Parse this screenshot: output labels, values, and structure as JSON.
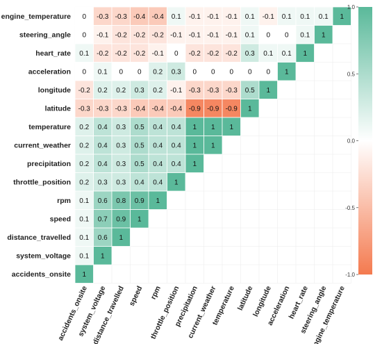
{
  "chart_data": {
    "type": "heatmap",
    "title": "",
    "row_order": [
      "engine_temperature",
      "steering_angle",
      "heart_rate",
      "acceleration",
      "longitude",
      "latitude",
      "temperature",
      "current_weather",
      "precipitation",
      "throttle_position",
      "rpm",
      "speed",
      "distance_travelled",
      "system_voltage",
      "accidents_onsite"
    ],
    "column_order": [
      "accidents_onsite",
      "system_voltage",
      "distance_travelled",
      "speed",
      "rpm",
      "throttle_position",
      "precipitation",
      "current_weather",
      "temperature",
      "latitude",
      "longitude",
      "acceleration",
      "heart_rate",
      "steering_angle",
      "engine_temperature"
    ],
    "row_labels": [
      "engine_temperature",
      "steering_angle",
      "heart_rate",
      "acceleration",
      "longitude",
      "latitude",
      "temperature",
      "current_weather",
      "precipitation",
      "throttle_position",
      "rpm",
      "speed",
      "distance_travelled",
      "system_voltage",
      "accidents_onsite"
    ],
    "column_labels": [
      "accidents_onsite",
      "system_voltage",
      "distance_travelled",
      "speed",
      "rpm",
      "throttle_position",
      "precipitation",
      "current_weather",
      "temperature",
      "latitude",
      "longitude",
      "acceleration",
      "heart_rate",
      "steering_angle",
      "engine_temperature"
    ],
    "matrix": [
      [
        0,
        -0.3,
        -0.3,
        -0.4,
        -0.4,
        0.1,
        -0.1,
        -0.1,
        -0.1,
        0.1,
        -0.1,
        0.1,
        0.1,
        0.1,
        1
      ],
      [
        0,
        -0.1,
        -0.2,
        -0.2,
        -0.2,
        -0.1,
        -0.1,
        -0.1,
        -0.1,
        0.1,
        0,
        0,
        0.1,
        1,
        null
      ],
      [
        0.1,
        -0.2,
        -0.2,
        -0.2,
        -0.1,
        0,
        -0.2,
        -0.2,
        -0.2,
        0.3,
        0.1,
        0.1,
        1,
        null,
        null
      ],
      [
        0,
        0.1,
        0,
        0,
        0.2,
        0.3,
        0,
        0,
        0,
        0,
        0,
        1,
        null,
        null,
        null
      ],
      [
        -0.2,
        0.2,
        0.2,
        0.3,
        0.2,
        -0.1,
        -0.3,
        -0.3,
        -0.3,
        0.5,
        1,
        null,
        null,
        null,
        null
      ],
      [
        -0.3,
        -0.3,
        -0.3,
        -0.4,
        -0.4,
        -0.4,
        -0.9,
        -0.9,
        -0.9,
        1,
        null,
        null,
        null,
        null,
        null
      ],
      [
        0.2,
        0.4,
        0.3,
        0.5,
        0.4,
        0.4,
        1,
        1,
        1,
        null,
        null,
        null,
        null,
        null,
        null
      ],
      [
        0.2,
        0.4,
        0.3,
        0.5,
        0.4,
        0.4,
        1,
        1,
        null,
        null,
        null,
        null,
        null,
        null,
        null
      ],
      [
        0.2,
        0.4,
        0.3,
        0.5,
        0.4,
        0.4,
        1,
        null,
        null,
        null,
        null,
        null,
        null,
        null,
        null
      ],
      [
        0.2,
        0.3,
        0.3,
        0.4,
        0.4,
        1,
        null,
        null,
        null,
        null,
        null,
        null,
        null,
        null,
        null
      ],
      [
        0.1,
        0.6,
        0.8,
        0.9,
        1,
        null,
        null,
        null,
        null,
        null,
        null,
        null,
        null,
        null,
        null
      ],
      [
        0.1,
        0.7,
        0.9,
        1,
        null,
        null,
        null,
        null,
        null,
        null,
        null,
        null,
        null,
        null,
        null
      ],
      [
        0.1,
        0.6,
        1,
        null,
        null,
        null,
        null,
        null,
        null,
        null,
        null,
        null,
        null,
        null,
        null
      ],
      [
        0.1,
        1,
        null,
        null,
        null,
        null,
        null,
        null,
        null,
        null,
        null,
        null,
        null,
        null,
        null
      ],
      [
        1,
        null,
        null,
        null,
        null,
        null,
        null,
        null,
        null,
        null,
        null,
        null,
        null,
        null,
        null
      ]
    ],
    "color_scale": {
      "min": -1,
      "mid": 0,
      "max": 1,
      "low_color": "#f47a4f",
      "mid_color": "#ffffff",
      "high_color": "#5ab99a"
    },
    "legend": {
      "placement": "right",
      "ticks": [
        1.0,
        0.5,
        0.0,
        -0.5,
        -1.0
      ],
      "tick_labels": [
        "1.0",
        "0.5",
        "0.0",
        "-0.5",
        "-1.0"
      ]
    },
    "grid": true
  }
}
